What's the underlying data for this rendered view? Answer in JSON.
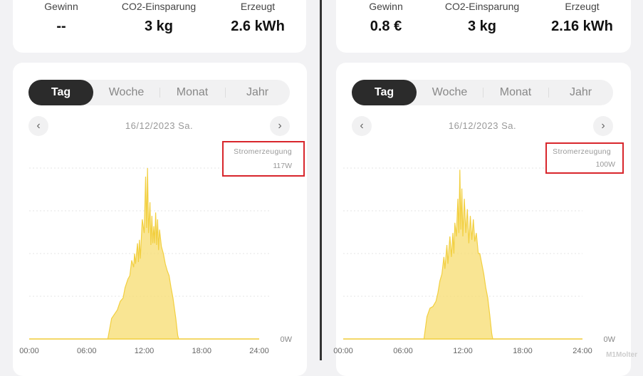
{
  "panels": [
    {
      "stats": [
        {
          "label": "Gewinn",
          "value": "--"
        },
        {
          "label": "CO2-Einsparung",
          "value": "3 kg"
        },
        {
          "label": "Erzeugt",
          "value": "2.6 kWh"
        }
      ],
      "tabs": [
        "Tag",
        "Woche",
        "Monat",
        "Jahr"
      ],
      "active_tab": "Tag",
      "date": "16/12/2023 Sa.",
      "tooltip": {
        "title": "Stromerzeugung",
        "value": "117W"
      }
    },
    {
      "stats": [
        {
          "label": "Gewinn",
          "value": "0.8 €"
        },
        {
          "label": "CO2-Einsparung",
          "value": "3 kg"
        },
        {
          "label": "Erzeugt",
          "value": "2.16 kWh"
        }
      ],
      "tabs": [
        "Tag",
        "Woche",
        "Monat",
        "Jahr"
      ],
      "active_tab": "Tag",
      "date": "16/12/2023 Sa.",
      "tooltip": {
        "title": "Stromerzeugung",
        "value": "100W"
      }
    }
  ],
  "chart_data": [
    {
      "type": "area",
      "x_tick_labels": [
        "00:00",
        "06:00",
        "12:00",
        "18:00",
        "24:00"
      ],
      "y_tick_label": "0W",
      "color": "#f7dc6f",
      "points": [
        [
          0,
          0
        ],
        [
          8.2,
          0
        ],
        [
          8.6,
          0.12
        ],
        [
          9.2,
          0.17
        ],
        [
          9.5,
          0.22
        ],
        [
          9.8,
          0.24
        ],
        [
          10,
          0.3
        ],
        [
          10.3,
          0.35
        ],
        [
          10.5,
          0.37
        ],
        [
          10.7,
          0.46
        ],
        [
          10.9,
          0.42
        ],
        [
          11.0,
          0.5
        ],
        [
          11.1,
          0.44
        ],
        [
          11.3,
          0.56
        ],
        [
          11.4,
          0.45
        ],
        [
          11.5,
          0.58
        ],
        [
          11.6,
          0.47
        ],
        [
          11.8,
          0.7
        ],
        [
          12.0,
          0.62
        ],
        [
          12.15,
          0.95
        ],
        [
          12.25,
          0.65
        ],
        [
          12.35,
          1.0
        ],
        [
          12.45,
          0.62
        ],
        [
          12.6,
          0.8
        ],
        [
          12.7,
          0.55
        ],
        [
          12.8,
          0.72
        ],
        [
          12.9,
          0.56
        ],
        [
          13.0,
          0.66
        ],
        [
          13.1,
          0.56
        ],
        [
          13.2,
          0.74
        ],
        [
          13.3,
          0.55
        ],
        [
          13.4,
          0.7
        ],
        [
          13.5,
          0.52
        ],
        [
          13.6,
          0.64
        ],
        [
          13.8,
          0.54
        ],
        [
          14.0,
          0.5
        ],
        [
          14.2,
          0.44
        ],
        [
          14.4,
          0.4
        ],
        [
          14.6,
          0.37
        ],
        [
          14.8,
          0.3
        ],
        [
          15.0,
          0.24
        ],
        [
          15.3,
          0.12
        ],
        [
          15.5,
          0.02
        ],
        [
          15.6,
          0
        ],
        [
          24,
          0
        ]
      ]
    },
    {
      "type": "area",
      "x_tick_labels": [
        "00:00",
        "06:00",
        "12:00",
        "18:00",
        "24:00"
      ],
      "y_tick_label": "0W",
      "color": "#f7dc6f",
      "points": [
        [
          0,
          0
        ],
        [
          8.1,
          0
        ],
        [
          8.4,
          0.13
        ],
        [
          8.7,
          0.18
        ],
        [
          9.0,
          0.19
        ],
        [
          9.3,
          0.22
        ],
        [
          9.5,
          0.27
        ],
        [
          9.7,
          0.34
        ],
        [
          9.9,
          0.38
        ],
        [
          10.1,
          0.48
        ],
        [
          10.2,
          0.41
        ],
        [
          10.4,
          0.55
        ],
        [
          10.5,
          0.44
        ],
        [
          10.7,
          0.6
        ],
        [
          10.85,
          0.48
        ],
        [
          11.0,
          0.62
        ],
        [
          11.1,
          0.5
        ],
        [
          11.2,
          0.68
        ],
        [
          11.35,
          0.6
        ],
        [
          11.5,
          0.82
        ],
        [
          11.6,
          0.62
        ],
        [
          11.7,
          0.99
        ],
        [
          11.8,
          0.64
        ],
        [
          11.9,
          0.88
        ],
        [
          12.0,
          0.6
        ],
        [
          12.15,
          0.82
        ],
        [
          12.3,
          0.62
        ],
        [
          12.45,
          0.76
        ],
        [
          12.6,
          0.56
        ],
        [
          12.75,
          0.72
        ],
        [
          12.9,
          0.58
        ],
        [
          13.05,
          0.7
        ],
        [
          13.2,
          0.57
        ],
        [
          13.35,
          0.62
        ],
        [
          13.55,
          0.5
        ],
        [
          13.7,
          0.5
        ],
        [
          13.9,
          0.44
        ],
        [
          14.1,
          0.38
        ],
        [
          14.3,
          0.3
        ],
        [
          14.5,
          0.24
        ],
        [
          14.7,
          0.14
        ],
        [
          14.9,
          0.03
        ],
        [
          15.0,
          0
        ],
        [
          24,
          0
        ]
      ]
    }
  ],
  "watermark": "M1Molter"
}
